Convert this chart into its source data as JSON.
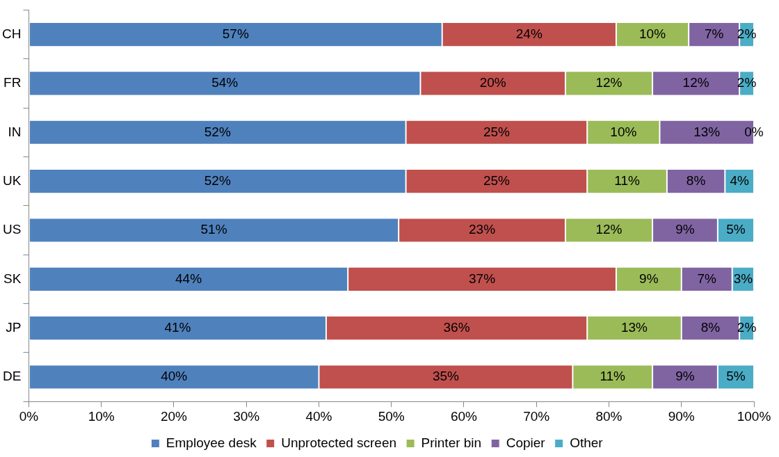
{
  "chart_data": {
    "type": "bar",
    "orientation": "horizontal",
    "stacked": true,
    "legend": "bottom",
    "categories": [
      "CH",
      "FR",
      "IN",
      "UK",
      "US",
      "SK",
      "JP",
      "DE"
    ],
    "xlim": [
      0,
      100
    ],
    "xticks": [
      {
        "value": 0,
        "label": "0%"
      },
      {
        "value": 10,
        "label": "10%"
      },
      {
        "value": 20,
        "label": "20%"
      },
      {
        "value": 30,
        "label": "30%"
      },
      {
        "value": 40,
        "label": "40%"
      },
      {
        "value": 50,
        "label": "50%"
      },
      {
        "value": 60,
        "label": "60%"
      },
      {
        "value": 70,
        "label": "70%"
      },
      {
        "value": 80,
        "label": "80%"
      },
      {
        "value": 90,
        "label": "90%"
      },
      {
        "value": 100,
        "label": "100%"
      }
    ],
    "series": [
      {
        "name": "Employee desk",
        "color": "#4f81bd",
        "values": [
          57,
          54,
          52,
          52,
          51,
          44,
          41,
          40
        ],
        "value_labels": [
          "57%",
          "54%",
          "52%",
          "52%",
          "51%",
          "44%",
          "41%",
          "40%"
        ]
      },
      {
        "name": "Unprotected screen",
        "color": "#c0504d",
        "values": [
          24,
          20,
          25,
          25,
          23,
          37,
          36,
          35
        ],
        "value_labels": [
          "24%",
          "20%",
          "25%",
          "25%",
          "23%",
          "37%",
          "36%",
          "35%"
        ]
      },
      {
        "name": "Printer bin",
        "color": "#9bbb59",
        "values": [
          10,
          12,
          10,
          11,
          12,
          9,
          13,
          11
        ],
        "value_labels": [
          "10%",
          "12%",
          "10%",
          "11%",
          "12%",
          "9%",
          "13%",
          "11%"
        ]
      },
      {
        "name": "Copier",
        "color": "#8064a2",
        "values": [
          7,
          12,
          13,
          8,
          9,
          7,
          8,
          9
        ],
        "value_labels": [
          "7%",
          "12%",
          "13%",
          "8%",
          "9%",
          "7%",
          "8%",
          "9%"
        ]
      },
      {
        "name": "Other",
        "color": "#4bacc6",
        "values": [
          2,
          2,
          0,
          4,
          5,
          3,
          2,
          5
        ],
        "value_labels": [
          "2%",
          "2%",
          "0%",
          "4%",
          "5%",
          "3%",
          "2%",
          "5%"
        ]
      }
    ]
  }
}
